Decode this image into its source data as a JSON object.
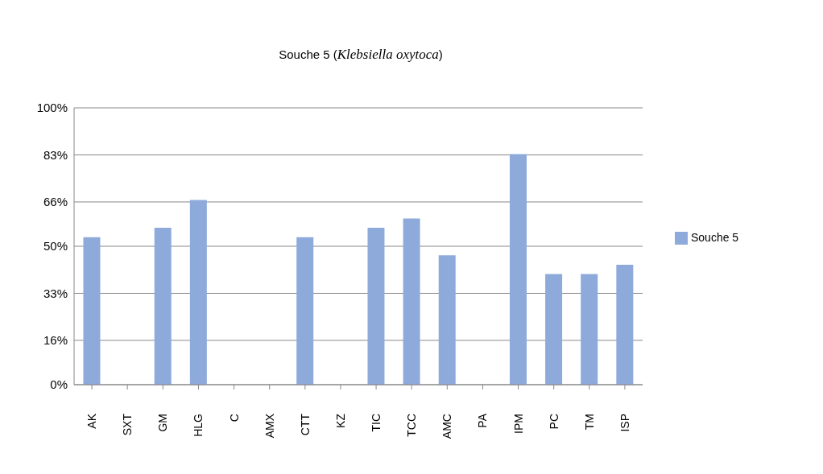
{
  "chart_data": {
    "type": "bar",
    "title": "Souche 5 (Klebsiella oxytoca)",
    "categories": [
      "AK",
      "SXT",
      "GM",
      "HLG",
      "C",
      "AMX",
      "CTT",
      "KZ",
      "TIC",
      "TCC",
      "AMC",
      "PA",
      "IPM",
      "PC",
      "TM",
      "ISP"
    ],
    "series": [
      {
        "name": "Souche 5",
        "color": "#8eaadb",
        "values": [
          53.3,
          0,
          56.7,
          66.7,
          0,
          0,
          53.3,
          0,
          56.7,
          60,
          46.7,
          0,
          83.3,
          40,
          40,
          43.3
        ]
      }
    ],
    "ylim": [
      0,
      100
    ],
    "yticks": [
      {
        "value": 0,
        "label": "0%"
      },
      {
        "value": 16,
        "label": "16%"
      },
      {
        "value": 33,
        "label": "33%"
      },
      {
        "value": 50,
        "label": "50%"
      },
      {
        "value": 66,
        "label": "66%"
      },
      {
        "value": 83,
        "label": "83%"
      },
      {
        "value": 100,
        "label": "100%"
      }
    ],
    "grid": "y",
    "legend": "right"
  }
}
